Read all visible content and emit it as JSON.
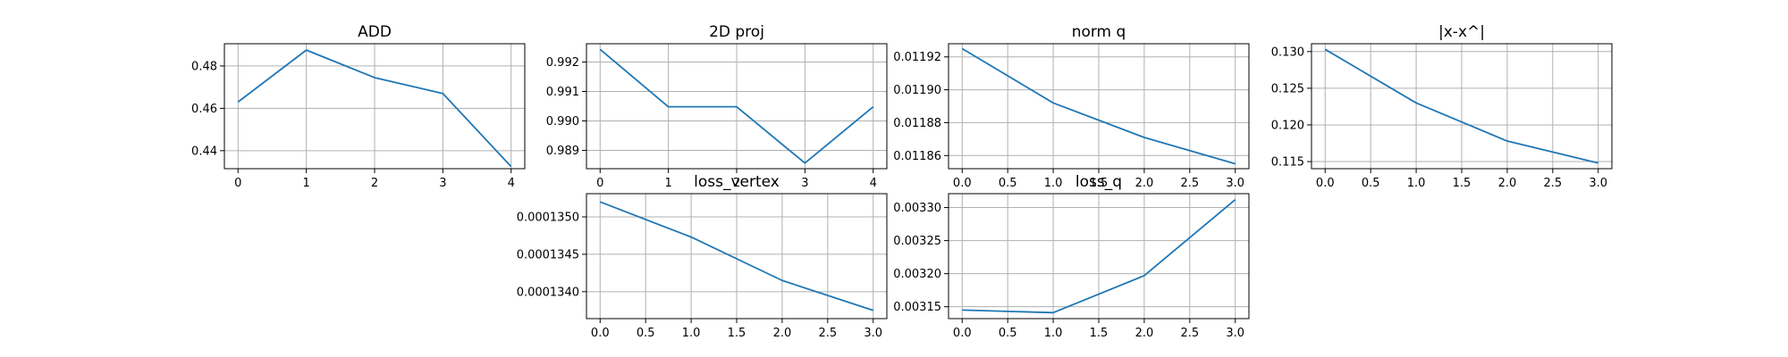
{
  "chart_data": [
    {
      "type": "line",
      "title": "ADD",
      "x": [
        0,
        1,
        2,
        3,
        4
      ],
      "y": [
        0.463,
        0.4875,
        0.4745,
        0.467,
        0.4325
      ],
      "xlim": [
        -0.2,
        4.2
      ],
      "ylim": [
        0.4315,
        0.4905
      ],
      "xticks": [
        0,
        1,
        2,
        3,
        4
      ],
      "xtick_labels": [
        "0",
        "1",
        "2",
        "3",
        "4"
      ],
      "yticks": [
        0.44,
        0.46,
        0.48
      ],
      "ytick_labels": [
        "0.44",
        "0.46",
        "0.48"
      ],
      "grid": true,
      "color": "#1f77b4"
    },
    {
      "type": "line",
      "title": "2D proj",
      "x": [
        0,
        1,
        2,
        3,
        4
      ],
      "y": [
        0.99243,
        0.99048,
        0.99048,
        0.98857,
        0.99048
      ],
      "xlim": [
        -0.2,
        4.2
      ],
      "ylim": [
        0.98838,
        0.99262
      ],
      "xticks": [
        0,
        1,
        2,
        3,
        4
      ],
      "xtick_labels": [
        "0",
        "1",
        "2",
        "3",
        "4"
      ],
      "yticks": [
        0.989,
        0.99,
        0.991,
        0.992
      ],
      "ytick_labels": [
        "0.989",
        "0.990",
        "0.991",
        "0.992"
      ],
      "grid": true,
      "color": "#1f77b4"
    },
    {
      "type": "line",
      "title": "norm q",
      "x": [
        0,
        1,
        2,
        3
      ],
      "y": [
        0.011925,
        0.011892,
        0.011871,
        0.011855
      ],
      "xlim": [
        -0.15,
        3.15
      ],
      "ylim": [
        0.011852,
        0.011928
      ],
      "xticks": [
        0,
        0.5,
        1,
        1.5,
        2,
        2.5,
        3
      ],
      "xtick_labels": [
        "0.0",
        "0.5",
        "1.0",
        "1.5",
        "2.0",
        "2.5",
        "3.0"
      ],
      "yticks": [
        0.01186,
        0.01188,
        0.0119,
        0.01192
      ],
      "ytick_labels": [
        "0.01186",
        "0.01188",
        "0.01190",
        "0.01192"
      ],
      "grid": true,
      "color": "#1f77b4"
    },
    {
      "type": "line",
      "title": "|x-x^|",
      "x": [
        0,
        1,
        2,
        3
      ],
      "y": [
        0.1303,
        0.123,
        0.1178,
        0.1148
      ],
      "xlim": [
        -0.15,
        3.15
      ],
      "ylim": [
        0.11403,
        0.13107
      ],
      "xticks": [
        0,
        0.5,
        1,
        1.5,
        2,
        2.5,
        3
      ],
      "xtick_labels": [
        "0.0",
        "0.5",
        "1.0",
        "1.5",
        "2.0",
        "2.5",
        "3.0"
      ],
      "yticks": [
        0.115,
        0.12,
        0.125,
        0.13
      ],
      "ytick_labels": [
        "0.115",
        "0.120",
        "0.125",
        "0.130"
      ],
      "grid": true,
      "color": "#1f77b4"
    },
    {
      "type": "line",
      "title": "loss_vertex",
      "x": [
        0,
        1,
        2,
        3
      ],
      "y": [
        0.0001352,
        0.00013473,
        0.00013415,
        0.00013375
      ],
      "xlim": [
        -0.15,
        3.15
      ],
      "ylim": [
        0.00013364,
        0.00013531
      ],
      "xticks": [
        0,
        0.5,
        1,
        1.5,
        2,
        2.5,
        3
      ],
      "xtick_labels": [
        "0.0",
        "0.5",
        "1.0",
        "1.5",
        "2.0",
        "2.5",
        "3.0"
      ],
      "yticks": [
        0.000134,
        0.0001345,
        0.000135
      ],
      "ytick_labels": [
        "0.0001340",
        "0.0001345",
        "0.0001350"
      ],
      "grid": true,
      "color": "#1f77b4"
    },
    {
      "type": "line",
      "title": "loss_q",
      "x": [
        0,
        1,
        2,
        3
      ],
      "y": [
        0.003145,
        0.003141,
        0.003197,
        0.003312
      ],
      "xlim": [
        -0.15,
        3.15
      ],
      "ylim": [
        0.003132,
        0.003321
      ],
      "xticks": [
        0,
        0.5,
        1,
        1.5,
        2,
        2.5,
        3
      ],
      "xtick_labels": [
        "0.0",
        "0.5",
        "1.0",
        "1.5",
        "2.0",
        "2.5",
        "3.0"
      ],
      "yticks": [
        0.00315,
        0.0032,
        0.00325,
        0.0033
      ],
      "ytick_labels": [
        "0.00315",
        "0.00320",
        "0.00325",
        "0.00330"
      ],
      "grid": true,
      "color": "#1f77b4"
    }
  ]
}
